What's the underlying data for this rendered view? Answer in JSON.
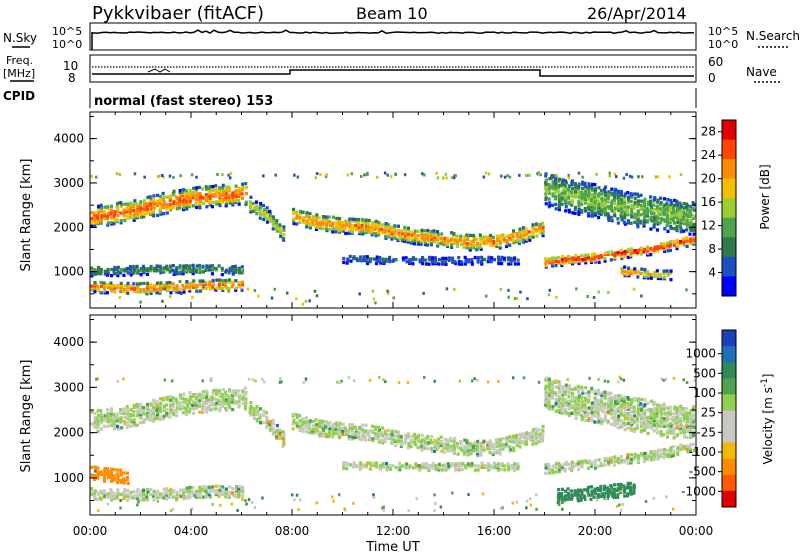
{
  "header": {
    "title": "Pykkvibaer (fitACF)",
    "beam": "Beam 10",
    "date": "26/Apr/2014"
  },
  "status": {
    "nsky_label": "N.Sky",
    "nsearch_label": "N.Search",
    "y_hi": "10^5",
    "y_lo": "10^0",
    "freq_label": "Freq.",
    "freq_unit": "[MHz]",
    "freq_ticks": [
      "10",
      "8"
    ],
    "nave_label": "Nave",
    "nave_ticks": [
      "60",
      "0"
    ],
    "cpid_label": "CPID",
    "cpid_text": "normal (fast stereo) 153"
  },
  "colors": {
    "power": [
      "#0000ff",
      "#1d4fc4",
      "#2e7a4a",
      "#4fa34a",
      "#9acd32",
      "#f2c000",
      "#ff8c00",
      "#ff4500",
      "#e00000"
    ],
    "velocity": [
      "#e00000",
      "#ff5a00",
      "#ff8c00",
      "#f5b800",
      "#c8c8c0",
      "#c8c8c0",
      "#8fd14f",
      "#4fa34a",
      "#2e8b57",
      "#1d6fb8",
      "#1d3fb8"
    ],
    "ground_scatter": "#c0c0b8"
  },
  "chart_data": [
    {
      "type": "heatmap",
      "name": "power",
      "title": "",
      "xlabel": "Time UT",
      "ylabel": "Slant Range [km]",
      "xlim": [
        0,
        24
      ],
      "ylim": [
        180,
        4600
      ],
      "x_ticks": [
        "00:00",
        "04:00",
        "08:00",
        "12:00",
        "16:00",
        "20:00",
        "00:00"
      ],
      "y_ticks": [
        "1000",
        "2000",
        "3000",
        "4000"
      ],
      "colorbar": {
        "label": "Power [dB]",
        "ticks": [
          "4",
          "8",
          "12",
          "16",
          "20",
          "24",
          "28"
        ],
        "range": [
          0,
          30
        ]
      },
      "bands": [
        {
          "x": [
            0,
            1,
            2,
            3,
            4,
            5,
            6.2
          ],
          "y": [
            2280,
            2350,
            2450,
            2600,
            2700,
            2750,
            2800
          ],
          "halfwidth": 230,
          "peak_db": 24
        },
        {
          "x": [
            6.3,
            7,
            7.6
          ],
          "y": [
            2550,
            2300,
            1900
          ],
          "halfwidth": 160,
          "peak_db": 16
        },
        {
          "x": [
            8,
            9,
            10,
            11,
            12,
            13,
            14,
            15,
            16,
            17,
            18
          ],
          "y": [
            2300,
            2150,
            2080,
            2050,
            1920,
            1830,
            1780,
            1700,
            1720,
            1850,
            2050
          ],
          "halfwidth": 170,
          "peak_db": 22
        },
        {
          "x": [
            18,
            19,
            20,
            21,
            22,
            23,
            24
          ],
          "y": [
            1250,
            1320,
            1360,
            1450,
            1520,
            1640,
            1780
          ],
          "halfwidth": 110,
          "peak_db": 26
        },
        {
          "x": [
            0,
            1,
            2,
            3,
            4,
            5,
            6
          ],
          "y": [
            700,
            660,
            660,
            680,
            720,
            740,
            730
          ],
          "halfwidth": 120,
          "peak_db": 23
        },
        {
          "x": [
            0,
            2,
            4,
            6
          ],
          "y": [
            1050,
            1080,
            1100,
            1080
          ],
          "halfwidth": 110,
          "peak_db": 9
        },
        {
          "x": [
            10,
            12,
            14,
            16,
            17
          ],
          "y": [
            1320,
            1300,
            1290,
            1300,
            1280
          ],
          "halfwidth": 80,
          "peak_db": 6
        },
        {
          "x": [
            18,
            19,
            20,
            21,
            22,
            23,
            24
          ],
          "y": [
            2900,
            2750,
            2650,
            2500,
            2400,
            2300,
            2250
          ],
          "halfwidth": 380,
          "peak_db": 13
        },
        {
          "x": [
            21,
            22,
            23
          ],
          "y": [
            1050,
            980,
            950
          ],
          "halfwidth": 90,
          "peak_db": 20
        }
      ]
    },
    {
      "type": "heatmap",
      "name": "velocity",
      "title": "",
      "xlabel": "Time UT",
      "ylabel": "Slant Range [km]",
      "xlim": [
        0,
        24
      ],
      "ylim": [
        180,
        4600
      ],
      "x_ticks": [
        "00:00",
        "04:00",
        "08:00",
        "12:00",
        "16:00",
        "20:00",
        "00:00"
      ],
      "y_ticks": [
        "1000",
        "2000",
        "3000",
        "4000"
      ],
      "colorbar": {
        "label": "Velocity [m s^-1]",
        "ticks": [
          "1000",
          "500",
          "100",
          "25",
          "-25",
          "-100",
          "-500",
          "-1000"
        ]
      },
      "bands": [
        {
          "x": [
            0,
            1,
            2,
            3,
            4,
            5,
            6.2
          ],
          "y": [
            2280,
            2350,
            2450,
            2600,
            2700,
            2750,
            2800
          ],
          "halfwidth": 230,
          "velocity": 0
        },
        {
          "x": [
            6.3,
            7,
            7.6
          ],
          "y": [
            2550,
            2300,
            1900
          ],
          "halfwidth": 160,
          "velocity": 0
        },
        {
          "x": [
            8,
            9,
            10,
            11,
            12,
            13,
            14,
            15,
            16,
            17,
            18
          ],
          "y": [
            2300,
            2150,
            2080,
            2050,
            1920,
            1830,
            1780,
            1700,
            1720,
            1850,
            2050
          ],
          "halfwidth": 170,
          "velocity": 0
        },
        {
          "x": [
            18,
            19,
            20,
            21,
            22,
            23,
            24
          ],
          "y": [
            1250,
            1320,
            1360,
            1450,
            1520,
            1640,
            1780
          ],
          "halfwidth": 110,
          "velocity": 0
        },
        {
          "x": [
            0,
            1,
            2,
            3,
            4,
            5,
            6
          ],
          "y": [
            700,
            660,
            660,
            680,
            720,
            740,
            730
          ],
          "halfwidth": 120,
          "velocity": 0
        },
        {
          "x": [
            0,
            0.7,
            1.5
          ],
          "y": [
            1150,
            1100,
            1050
          ],
          "halfwidth": 140,
          "velocity": -600
        },
        {
          "x": [
            10,
            12,
            14,
            16,
            17
          ],
          "y": [
            1320,
            1300,
            1290,
            1300,
            1280
          ],
          "halfwidth": 80,
          "velocity": 0
        },
        {
          "x": [
            18,
            19,
            20,
            21,
            22,
            23,
            24
          ],
          "y": [
            2900,
            2750,
            2650,
            2500,
            2400,
            2300,
            2250
          ],
          "halfwidth": 380,
          "velocity": 0
        },
        {
          "x": [
            18.5,
            20,
            21.5
          ],
          "y": [
            650,
            720,
            800
          ],
          "halfwidth": 150,
          "velocity": 400
        }
      ]
    }
  ]
}
